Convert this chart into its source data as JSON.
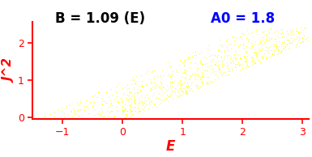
{
  "title": "B = 1.09 (E)",
  "annotation": "A0 = 1.8",
  "xlabel": "E",
  "ylabel": "J^2",
  "xlim": [
    -1.5,
    3.1
  ],
  "ylim": [
    -0.05,
    2.55
  ],
  "dot_color": "yellow",
  "dot_size": 2.5,
  "title_color": "black",
  "annotation_color": "blue",
  "xlabel_color": "red",
  "ylabel_color": "red",
  "axis_color": "red",
  "background_color": "white",
  "B": 1.09,
  "A0": 1.8,
  "seed": 42,
  "n_bands": 18,
  "n_points_per_band": 60
}
